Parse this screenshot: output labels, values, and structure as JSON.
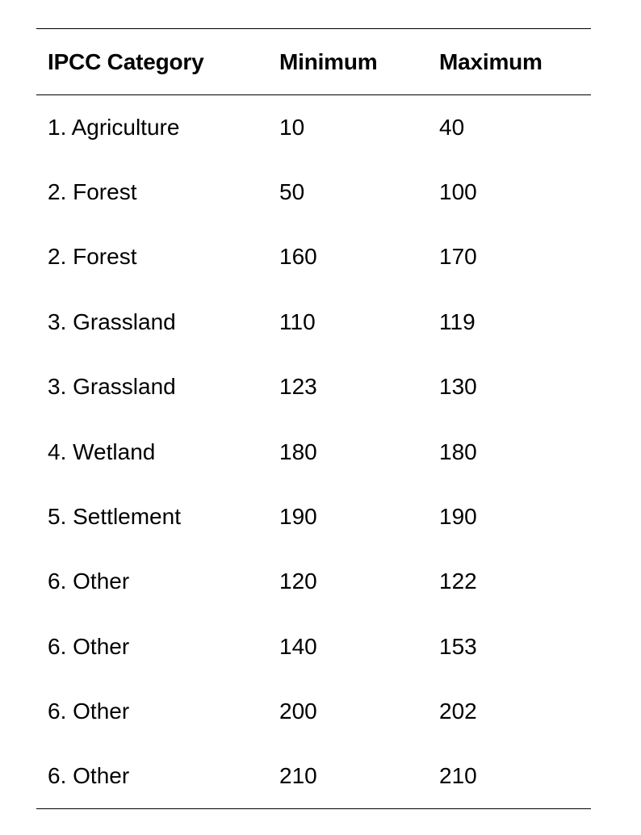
{
  "table": {
    "headers": [
      "IPCC Category",
      "Minimum",
      "Maximum"
    ],
    "rows": [
      {
        "category": "1. Agriculture",
        "minimum": "10",
        "maximum": "40"
      },
      {
        "category": "2. Forest",
        "minimum": "50",
        "maximum": "100"
      },
      {
        "category": "2. Forest",
        "minimum": "160",
        "maximum": "170"
      },
      {
        "category": "3. Grassland",
        "minimum": "110",
        "maximum": "119"
      },
      {
        "category": "3. Grassland",
        "minimum": "123",
        "maximum": "130"
      },
      {
        "category": "4. Wetland",
        "minimum": "180",
        "maximum": "180"
      },
      {
        "category": "5. Settlement",
        "minimum": "190",
        "maximum": "190"
      },
      {
        "category": "6. Other",
        "minimum": "120",
        "maximum": "122"
      },
      {
        "category": "6. Other",
        "minimum": "140",
        "maximum": "153"
      },
      {
        "category": "6. Other",
        "minimum": "200",
        "maximum": "202"
      },
      {
        "category": "6. Other",
        "minimum": "210",
        "maximum": "210"
      }
    ]
  }
}
